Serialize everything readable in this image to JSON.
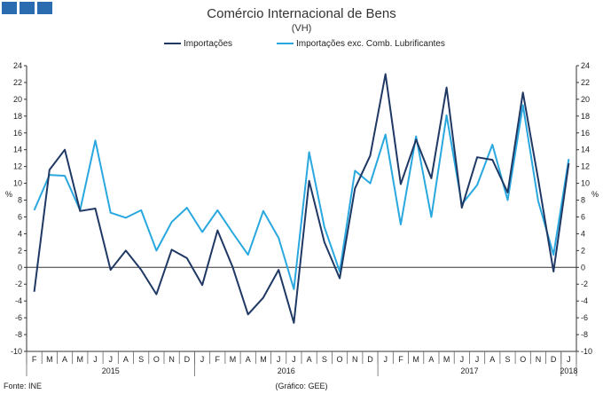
{
  "logo": {
    "blocks": 3,
    "color": "#2b6cb0"
  },
  "footer": {
    "source": "Fonte: INE",
    "credit": "(Gráfico: GEE)"
  },
  "chart_data": {
    "type": "line",
    "title": "Comércio Internacional de Bens",
    "subtitle": "(VH)",
    "ylabel_left": "%",
    "ylabel_right": "%",
    "ylim": [
      -10,
      24
    ],
    "yticks": [
      -10,
      -8,
      -6,
      -4,
      -2,
      0,
      2,
      4,
      6,
      8,
      10,
      12,
      14,
      16,
      18,
      20,
      22,
      24
    ],
    "grid": false,
    "legend_position": "top",
    "months": [
      "F",
      "M",
      "A",
      "M",
      "J",
      "J",
      "A",
      "S",
      "O",
      "N",
      "D",
      "J",
      "F",
      "M",
      "A",
      "M",
      "J",
      "J",
      "A",
      "S",
      "O",
      "N",
      "D",
      "J",
      "F",
      "M",
      "A",
      "M",
      "J",
      "J",
      "A",
      "S",
      "O",
      "N",
      "D",
      "J"
    ],
    "years": [
      {
        "label": "2015",
        "start": 0,
        "end": 10
      },
      {
        "label": "2016",
        "start": 11,
        "end": 22
      },
      {
        "label": "2017",
        "start": 23,
        "end": 34
      },
      {
        "label": "2018",
        "start": 35,
        "end": 35
      }
    ],
    "series": [
      {
        "name": "Importações",
        "color": "#1f3864",
        "values": [
          -2.9,
          11.6,
          14.0,
          6.7,
          7.0,
          -0.3,
          2.0,
          -0.3,
          -3.2,
          2.1,
          1.1,
          -2.1,
          4.4,
          0.0,
          -5.6,
          -3.6,
          -0.3,
          -6.6,
          10.3,
          3.0,
          -1.3,
          9.4,
          13.3,
          23.0,
          9.9,
          15.2,
          10.6,
          21.4,
          7.1,
          13.1,
          12.8,
          8.9,
          20.8,
          10.5,
          -0.5,
          12.4
        ]
      },
      {
        "name": "Importações exc. Comb. Lubrificantes",
        "color": "#29a8e0",
        "values": [
          6.8,
          11.0,
          10.9,
          6.8,
          15.1,
          6.5,
          5.9,
          6.8,
          2.0,
          5.4,
          7.1,
          4.2,
          6.8,
          4.1,
          1.5,
          6.7,
          3.5,
          -2.6,
          13.7,
          4.8,
          -0.5,
          11.5,
          10.0,
          15.8,
          5.1,
          15.6,
          6.0,
          18.1,
          7.5,
          9.8,
          14.6,
          8.0,
          19.3,
          7.9,
          1.5,
          12.9
        ]
      }
    ]
  }
}
